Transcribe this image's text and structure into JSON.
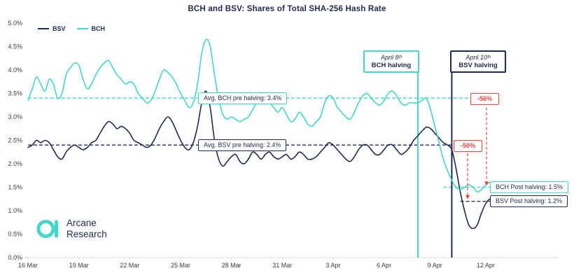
{
  "title": "BCH and BSV: Shares of Total SHA-256 Hash Rate",
  "legend": {
    "bsv": "BSV",
    "bch": "BCH"
  },
  "colors": {
    "navy": "#1f2a4e",
    "teal": "#45d5cb",
    "red": "#e8443c",
    "axis": "#d9d9d9",
    "tick_text": "#3c3c3c"
  },
  "logo": {
    "line1": "Arcane",
    "line2": "Research"
  },
  "annotations": {
    "bch_halving_date": "April 8ᵗʰ",
    "bch_halving_label": "BCH halving",
    "bsv_halving_date": "April 10ᵗʰ",
    "bsv_halving_label": "BSV halving",
    "avg_bch_pre": "Avg. BCH pre halving: 3.4%",
    "avg_bsv_pre": "Avg. BSV pre halving: 2.4%",
    "bch_drop": "-56%",
    "bsv_drop": "-50%",
    "bch_post": "BCH Post halving: 1.5%",
    "bsv_post": "BSV Post halving: 1.2%"
  },
  "chart_data": {
    "type": "line",
    "title": "BCH and BSV: Shares of Total SHA-256 Hash Rate",
    "ylim": [
      0,
      5
    ],
    "y_ticks": [
      {
        "v": 5.0,
        "label": "5.0%"
      },
      {
        "v": 4.5,
        "label": "4.5%"
      },
      {
        "v": 4.0,
        "label": "4.0%"
      },
      {
        "v": 3.5,
        "label": "3.5%"
      },
      {
        "v": 3.0,
        "label": "3.0%"
      },
      {
        "v": 2.5,
        "label": "2.5%"
      },
      {
        "v": 2.0,
        "label": "2.0%"
      },
      {
        "v": 1.5,
        "label": "1.5%"
      },
      {
        "v": 1.0,
        "label": "1.0%"
      },
      {
        "v": 0.5,
        "label": "0.5%"
      },
      {
        "v": 0.0,
        "label": "0.0%"
      }
    ],
    "x_range_days": [
      0,
      31.3
    ],
    "x_ticks": [
      {
        "day": 0,
        "label": "16 Mar"
      },
      {
        "day": 3,
        "label": "19 Mar"
      },
      {
        "day": 6,
        "label": "22 Mar"
      },
      {
        "day": 9,
        "label": "25 Mar"
      },
      {
        "day": 12,
        "label": "28 Mar"
      },
      {
        "day": 15,
        "label": "31 Mar"
      },
      {
        "day": 18,
        "label": "3 Apr"
      },
      {
        "day": 21,
        "label": "6 Apr"
      },
      {
        "day": 24,
        "label": "9 Apr"
      },
      {
        "day": 27,
        "label": "12 Apr"
      }
    ],
    "avg_lines": [
      {
        "name": "avg-bch-pre",
        "value": 3.4,
        "span": [
          0,
          27.05
        ],
        "color": "#45d5cb"
      },
      {
        "name": "avg-bsv-pre",
        "value": 2.4,
        "span": [
          0,
          25.93
        ],
        "color": "#1f2a4e"
      }
    ],
    "post_lines": [
      {
        "name": "bch-post",
        "value": 1.5,
        "span": [
          24.5,
          31.3
        ],
        "color": "#45d5cb"
      },
      {
        "name": "bsv-post",
        "value": 1.2,
        "span": [
          25.5,
          31.3
        ],
        "color": "#1f2a4e"
      }
    ],
    "events": [
      {
        "name": "bch-halving-line",
        "day": 23,
        "date": "April 8",
        "color": "#45d5cb"
      },
      {
        "name": "bsv-halving-line",
        "day": 25,
        "date": "April 10",
        "color": "#1f2a4e"
      }
    ],
    "drops": [
      {
        "name": "bch-drop-arrow",
        "pct": -56,
        "day": 27.05,
        "line_from": 3.2,
        "line_to": 1.62
      },
      {
        "name": "bsv-drop-arrow",
        "pct": -50,
        "day": 25.93,
        "line_from": 2.22,
        "line_to": 1.33
      }
    ],
    "series": [
      {
        "name": "BSV",
        "color": "#1f2a4e",
        "points": [
          [
            0,
            2.35
          ],
          [
            0.25,
            2.4
          ],
          [
            0.5,
            2.5
          ],
          [
            0.75,
            2.45
          ],
          [
            1,
            2.5
          ],
          [
            1.25,
            2.45
          ],
          [
            1.5,
            2.3
          ],
          [
            1.75,
            2.15
          ],
          [
            2,
            2.1
          ],
          [
            2.25,
            2.25
          ],
          [
            2.5,
            2.35
          ],
          [
            2.75,
            2.4
          ],
          [
            3,
            2.35
          ],
          [
            3.25,
            2.3
          ],
          [
            3.5,
            2.35
          ],
          [
            3.75,
            2.45
          ],
          [
            4,
            2.5
          ],
          [
            4.25,
            2.65
          ],
          [
            4.5,
            2.8
          ],
          [
            4.75,
            2.9
          ],
          [
            5,
            2.85
          ],
          [
            5.25,
            2.75
          ],
          [
            5.5,
            2.8
          ],
          [
            5.75,
            2.75
          ],
          [
            6,
            2.65
          ],
          [
            6.25,
            2.5
          ],
          [
            6.5,
            2.45
          ],
          [
            6.75,
            2.4
          ],
          [
            7,
            2.35
          ],
          [
            7.25,
            2.4
          ],
          [
            7.5,
            2.55
          ],
          [
            7.75,
            2.75
          ],
          [
            8,
            2.9
          ],
          [
            8.25,
            3.0
          ],
          [
            8.5,
            2.9
          ],
          [
            8.75,
            2.7
          ],
          [
            9,
            2.5
          ],
          [
            9.25,
            2.35
          ],
          [
            9.5,
            2.3
          ],
          [
            9.75,
            2.45
          ],
          [
            10,
            2.8
          ],
          [
            10.25,
            3.3
          ],
          [
            10.5,
            3.55
          ],
          [
            10.75,
            3.2
          ],
          [
            11,
            2.5
          ],
          [
            11.25,
            2.1
          ],
          [
            11.5,
            1.95
          ],
          [
            11.75,
            2.05
          ],
          [
            12,
            2.15
          ],
          [
            12.25,
            2.2
          ],
          [
            12.5,
            2.05
          ],
          [
            12.75,
            2.0
          ],
          [
            13,
            2.1
          ],
          [
            13.25,
            2.25
          ],
          [
            13.5,
            2.2
          ],
          [
            13.75,
            2.1
          ],
          [
            14,
            2.2
          ],
          [
            14.25,
            2.25
          ],
          [
            14.5,
            2.15
          ],
          [
            14.75,
            2.1
          ],
          [
            15,
            2.15
          ],
          [
            15.25,
            2.2
          ],
          [
            15.5,
            2.1
          ],
          [
            15.75,
            2.15
          ],
          [
            16,
            2.25
          ],
          [
            16.25,
            2.2
          ],
          [
            16.5,
            2.1
          ],
          [
            16.75,
            2.1
          ],
          [
            17,
            2.15
          ],
          [
            17.25,
            2.25
          ],
          [
            17.5,
            2.35
          ],
          [
            17.75,
            2.45
          ],
          [
            18,
            2.4
          ],
          [
            18.25,
            2.3
          ],
          [
            18.5,
            2.2
          ],
          [
            18.75,
            2.1
          ],
          [
            19,
            2.05
          ],
          [
            19.25,
            2.15
          ],
          [
            19.5,
            2.3
          ],
          [
            19.75,
            2.4
          ],
          [
            20,
            2.4
          ],
          [
            20.25,
            2.3
          ],
          [
            20.5,
            2.2
          ],
          [
            20.75,
            2.2
          ],
          [
            21,
            2.3
          ],
          [
            21.25,
            2.4
          ],
          [
            21.5,
            2.4
          ],
          [
            21.75,
            2.3
          ],
          [
            22,
            2.2
          ],
          [
            22.25,
            2.25
          ],
          [
            22.5,
            2.35
          ],
          [
            22.75,
            2.5
          ],
          [
            23,
            2.6
          ],
          [
            23.25,
            2.7
          ],
          [
            23.5,
            2.78
          ],
          [
            23.75,
            2.75
          ],
          [
            24,
            2.65
          ],
          [
            24.25,
            2.55
          ],
          [
            24.5,
            2.45
          ],
          [
            24.75,
            2.4
          ],
          [
            25,
            2.3
          ],
          [
            25.25,
            1.9
          ],
          [
            25.5,
            1.4
          ],
          [
            25.75,
            1.0
          ],
          [
            26,
            0.7
          ],
          [
            26.25,
            0.62
          ],
          [
            26.5,
            0.7
          ],
          [
            26.75,
            0.95
          ],
          [
            27,
            1.15
          ],
          [
            27.25,
            1.25
          ],
          [
            27.5,
            1.2
          ],
          [
            27.75,
            1.15
          ],
          [
            28,
            1.2
          ],
          [
            28.25,
            1.25
          ],
          [
            28.5,
            1.18
          ],
          [
            28.75,
            1.15
          ],
          [
            29,
            1.2
          ],
          [
            29.25,
            1.22
          ],
          [
            29.5,
            1.18
          ],
          [
            29.75,
            1.2
          ],
          [
            30,
            1.2
          ],
          [
            30.3,
            1.2
          ]
        ]
      },
      {
        "name": "BCH",
        "color": "#45d5cb",
        "points": [
          [
            0,
            3.35
          ],
          [
            0.25,
            3.6
          ],
          [
            0.5,
            3.85
          ],
          [
            0.75,
            3.7
          ],
          [
            1,
            3.55
          ],
          [
            1.25,
            3.8
          ],
          [
            1.5,
            3.7
          ],
          [
            1.75,
            3.4
          ],
          [
            2,
            3.5
          ],
          [
            2.25,
            3.9
          ],
          [
            2.5,
            4.05
          ],
          [
            2.75,
            4.15
          ],
          [
            3,
            4.1
          ],
          [
            3.25,
            3.8
          ],
          [
            3.5,
            3.6
          ],
          [
            3.75,
            3.7
          ],
          [
            4,
            3.9
          ],
          [
            4.25,
            4.05
          ],
          [
            4.5,
            4.15
          ],
          [
            4.75,
            4.2
          ],
          [
            5,
            4.05
          ],
          [
            5.25,
            3.9
          ],
          [
            5.5,
            3.8
          ],
          [
            5.75,
            3.7
          ],
          [
            6,
            3.75
          ],
          [
            6.25,
            3.7
          ],
          [
            6.5,
            3.5
          ],
          [
            6.75,
            3.4
          ],
          [
            7,
            3.3
          ],
          [
            7.25,
            3.35
          ],
          [
            7.5,
            3.55
          ],
          [
            7.75,
            3.8
          ],
          [
            8,
            4.0
          ],
          [
            8.25,
            3.95
          ],
          [
            8.5,
            3.85
          ],
          [
            8.75,
            3.7
          ],
          [
            9,
            3.5
          ],
          [
            9.25,
            3.35
          ],
          [
            9.5,
            3.2
          ],
          [
            9.75,
            3.3
          ],
          [
            10,
            3.7
          ],
          [
            10.25,
            4.35
          ],
          [
            10.5,
            4.65
          ],
          [
            10.75,
            4.5
          ],
          [
            11,
            3.9
          ],
          [
            11.25,
            3.4
          ],
          [
            11.5,
            3.05
          ],
          [
            11.75,
            2.95
          ],
          [
            12,
            3.0
          ],
          [
            12.25,
            2.95
          ],
          [
            12.5,
            2.9
          ],
          [
            12.75,
            2.95
          ],
          [
            13,
            3.0
          ],
          [
            13.25,
            3.15
          ],
          [
            13.5,
            3.3
          ],
          [
            13.75,
            3.3
          ],
          [
            14,
            3.35
          ],
          [
            14.25,
            3.3
          ],
          [
            14.5,
            3.2
          ],
          [
            14.75,
            3.1
          ],
          [
            15,
            3.2
          ],
          [
            15.25,
            3.05
          ],
          [
            15.5,
            2.9
          ],
          [
            15.75,
            2.95
          ],
          [
            16,
            3.1
          ],
          [
            16.25,
            3.0
          ],
          [
            16.5,
            2.85
          ],
          [
            16.75,
            2.8
          ],
          [
            17,
            2.9
          ],
          [
            17.25,
            3.0
          ],
          [
            17.5,
            3.3
          ],
          [
            17.75,
            3.45
          ],
          [
            18,
            3.4
          ],
          [
            18.25,
            3.2
          ],
          [
            18.5,
            3.1
          ],
          [
            18.75,
            3.0
          ],
          [
            19,
            2.95
          ],
          [
            19.25,
            3.1
          ],
          [
            19.5,
            3.3
          ],
          [
            19.75,
            3.45
          ],
          [
            20,
            3.5
          ],
          [
            20.25,
            3.4
          ],
          [
            20.5,
            3.3
          ],
          [
            20.75,
            3.25
          ],
          [
            21,
            3.35
          ],
          [
            21.25,
            3.5
          ],
          [
            21.5,
            3.55
          ],
          [
            21.75,
            3.45
          ],
          [
            22,
            3.3
          ],
          [
            22.25,
            3.25
          ],
          [
            22.5,
            3.3
          ],
          [
            22.75,
            3.3
          ],
          [
            23,
            3.3
          ],
          [
            23.25,
            3.35
          ],
          [
            23.5,
            3.4
          ],
          [
            23.75,
            3.15
          ],
          [
            24,
            2.8
          ],
          [
            24.25,
            2.45
          ],
          [
            24.5,
            2.1
          ],
          [
            24.75,
            1.85
          ],
          [
            25,
            1.65
          ],
          [
            25.25,
            1.5
          ],
          [
            25.5,
            1.45
          ],
          [
            25.75,
            1.5
          ],
          [
            26,
            1.55
          ],
          [
            26.25,
            1.5
          ],
          [
            26.5,
            1.4
          ],
          [
            26.75,
            1.45
          ],
          [
            27,
            1.55
          ],
          [
            27.25,
            1.6
          ],
          [
            27.5,
            1.5
          ],
          [
            27.75,
            1.45
          ],
          [
            28,
            1.5
          ],
          [
            28.25,
            1.55
          ],
          [
            28.5,
            1.5
          ],
          [
            28.75,
            1.45
          ],
          [
            29,
            1.5
          ],
          [
            29.25,
            1.55
          ],
          [
            29.5,
            1.5
          ],
          [
            29.75,
            1.45
          ],
          [
            30,
            1.5
          ],
          [
            30.3,
            1.5
          ]
        ]
      }
    ]
  }
}
